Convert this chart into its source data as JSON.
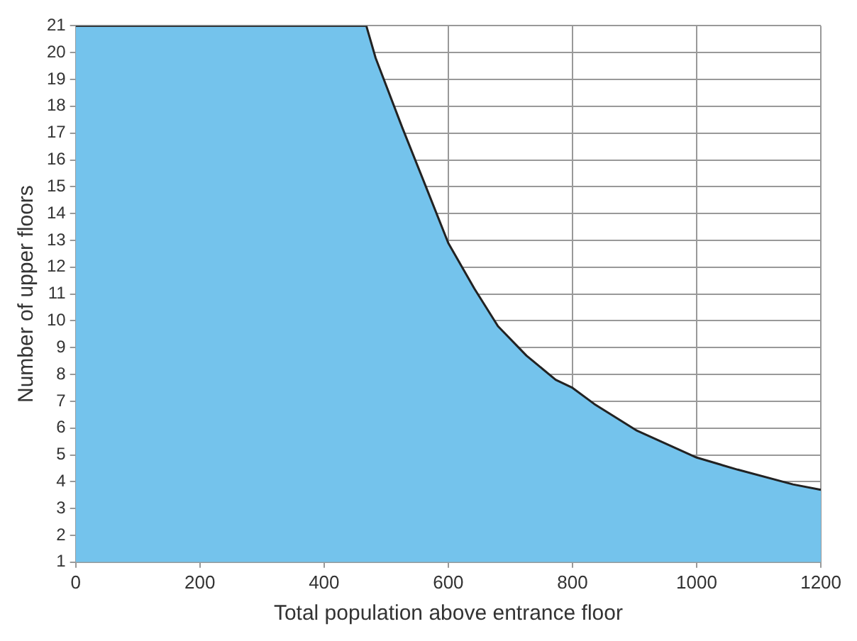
{
  "chart_data": {
    "type": "area",
    "xlabel": "Total population above entrance floor",
    "ylabel": "Number of upper floors",
    "x": [
      0,
      468,
      483,
      526,
      564,
      600,
      642,
      680,
      726,
      773,
      800,
      835,
      904,
      1000,
      1066,
      1155,
      1200
    ],
    "series": [
      {
        "color": "#74c3ec",
        "values": [
          21,
          21,
          19.8,
          17.2,
          15.0,
          12.9,
          11.2,
          9.8,
          8.7,
          7.8,
          7.5,
          6.9,
          5.9,
          4.9,
          4.45,
          3.9,
          3.7
        ]
      }
    ],
    "xlim": [
      0,
      1200
    ],
    "xticks": [
      0,
      200,
      400,
      600,
      800,
      1000,
      1200
    ],
    "ylim": [
      1,
      21
    ],
    "yticks": [
      1,
      2,
      3,
      4,
      5,
      6,
      7,
      8,
      9,
      10,
      11,
      12,
      13,
      14,
      15,
      16,
      17,
      18,
      19,
      20,
      21
    ],
    "grid": true,
    "legend": false
  }
}
